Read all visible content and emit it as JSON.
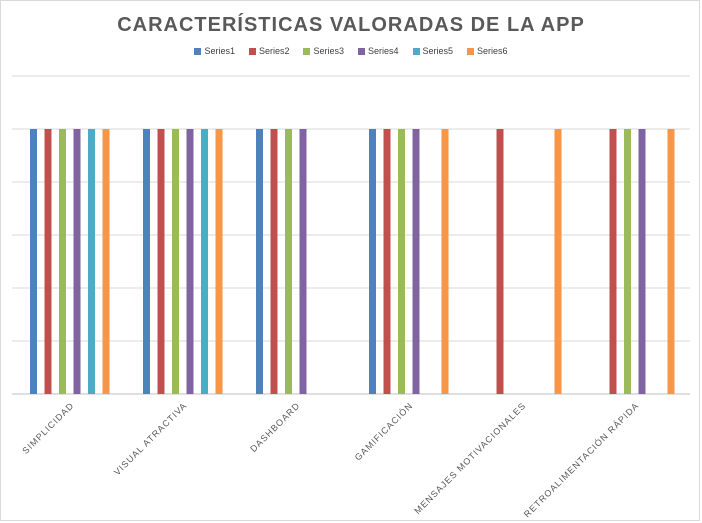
{
  "chart_data": {
    "type": "bar",
    "title": "CARACTERÍSTICAS VALORADAS DE LA APP",
    "categories": [
      "SIMPLICIDAD",
      "VISUAL ATRACTIVA",
      "DASHBOARD",
      "GAMIFICACIÓN",
      "MENSAJES MOTIVACIONALES",
      "RETROALIMENTACIÓN RÁPIDA"
    ],
    "series": [
      {
        "name": "Series1",
        "color": "#4f81bd",
        "values": [
          1,
          1,
          1,
          1,
          null,
          null
        ]
      },
      {
        "name": "Series2",
        "color": "#c0504d",
        "values": [
          1,
          1,
          1,
          1,
          1,
          1
        ]
      },
      {
        "name": "Series3",
        "color": "#9bbb59",
        "values": [
          1,
          1,
          1,
          1,
          null,
          1
        ]
      },
      {
        "name": "Series4",
        "color": "#8064a2",
        "values": [
          1,
          1,
          1,
          1,
          null,
          1
        ]
      },
      {
        "name": "Series5",
        "color": "#4bacc6",
        "values": [
          1,
          1,
          null,
          null,
          null,
          null
        ]
      },
      {
        "name": "Series6",
        "color": "#f79646",
        "values": [
          1,
          1,
          null,
          1,
          1,
          1
        ]
      }
    ],
    "ylim": [
      0,
      1.2
    ],
    "gridlines": 6,
    "grid": true,
    "legend": "top",
    "xlabel": "",
    "ylabel": ""
  }
}
